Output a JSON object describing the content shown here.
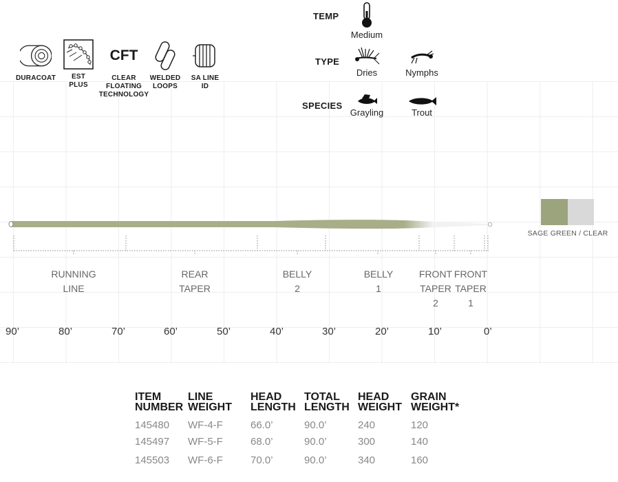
{
  "features": [
    {
      "name": "duracoat",
      "label": "DURACOAT"
    },
    {
      "name": "est-plus",
      "label": "EST\nPLUS"
    },
    {
      "name": "cft",
      "label": "CLEAR\nFLOATING\nTECHNOLOGY",
      "badge": "CFT"
    },
    {
      "name": "welded-loops",
      "label": "WELDED\nLOOPS"
    },
    {
      "name": "sa-line-id",
      "label": "SA LINE\nID"
    }
  ],
  "specs": {
    "temp": {
      "heading": "TEMP",
      "value": "Medium"
    },
    "type": {
      "heading": "TYPE",
      "items": [
        "Dries",
        "Nymphs"
      ]
    },
    "species": {
      "heading": "SPECIES",
      "items": [
        "Grayling",
        "Trout"
      ]
    }
  },
  "swatch": {
    "label": "SAGE GREEN / CLEAR",
    "colors": [
      "#9ca47e",
      "#d9d9d9"
    ]
  },
  "sections": [
    {
      "label": "RUNNING\nLINE"
    },
    {
      "label": "REAR\nTAPER"
    },
    {
      "label": "BELLY\n2"
    },
    {
      "label": "BELLY\n1"
    },
    {
      "label": "FRONT\nTAPER\n2"
    },
    {
      "label": "FRONT\nTAPER\n1"
    }
  ],
  "distances": [
    "90’",
    "80’",
    "70’",
    "60’",
    "50’",
    "40’",
    "30’",
    "20’",
    "10’",
    "0’"
  ],
  "table": {
    "headers": [
      "ITEM\nNUMBER",
      "LINE\nWEIGHT",
      "HEAD\nLENGTH",
      "TOTAL\nLENGTH",
      "HEAD\nWEIGHT",
      "GRAIN\nWEIGHT*"
    ],
    "rows": [
      [
        "145480",
        "WF-4-F",
        "66.0’",
        "90.0’",
        "240",
        "120"
      ],
      [
        "145497",
        "WF-5-F",
        "68.0’",
        "90.0’",
        "300",
        "140"
      ],
      [
        "145503",
        "WF-6-F",
        "70.0’",
        "90.0’",
        "340",
        "160"
      ]
    ]
  },
  "line_colors": {
    "sage": "#a9ad88",
    "clear": "#f2f2f2"
  }
}
